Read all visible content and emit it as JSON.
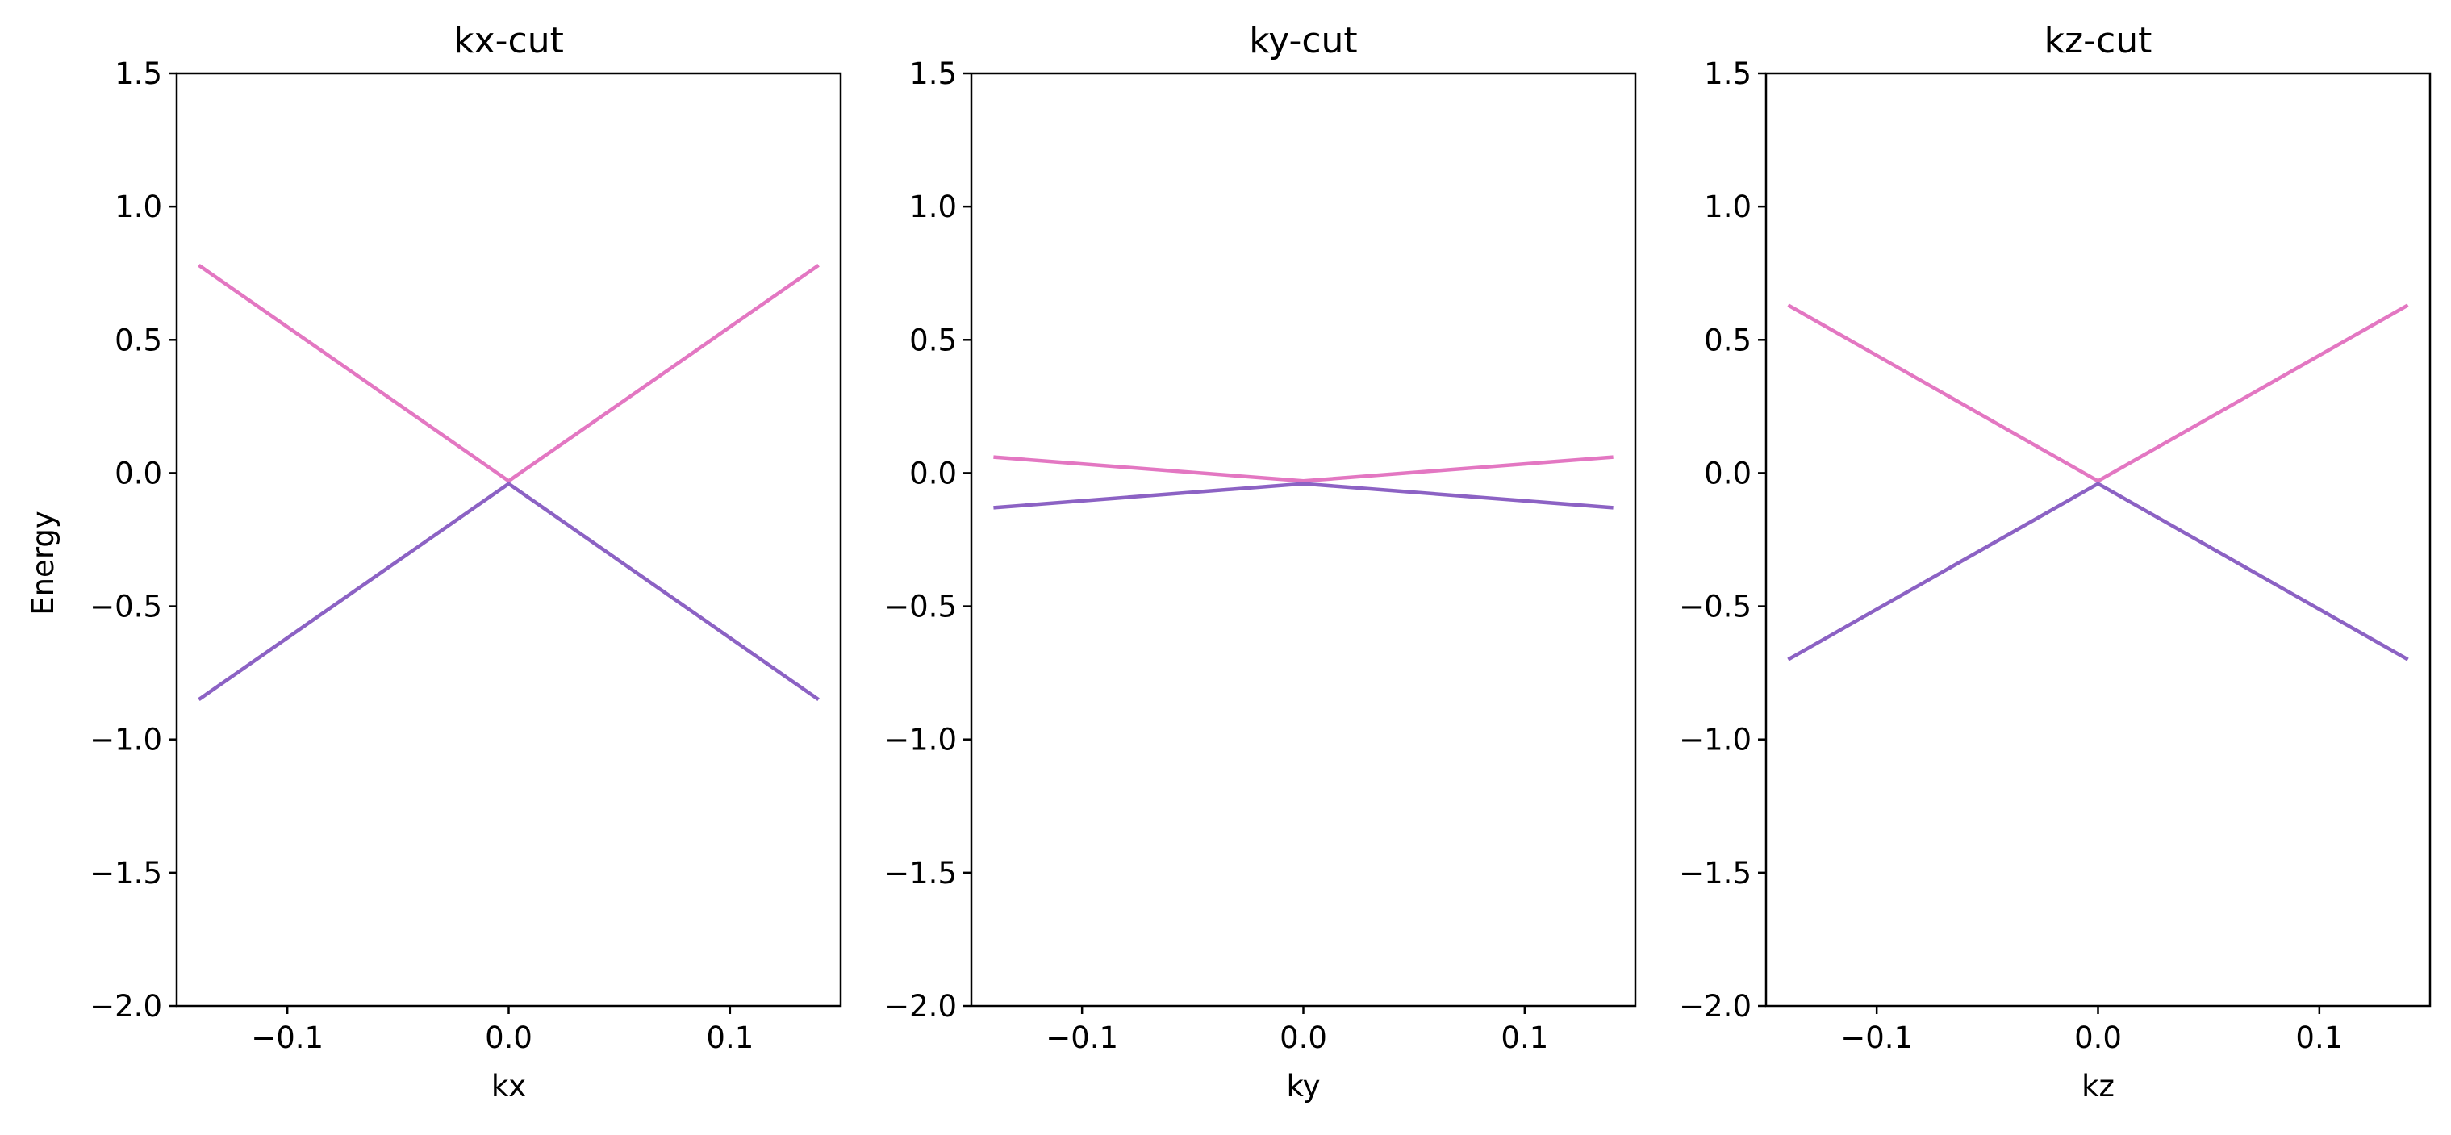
{
  "figure": {
    "background": "#ffffff",
    "shared_ylabel": "Energy"
  },
  "colors": {
    "upper_band": "#e377c2",
    "lower_band": "#8c62c4",
    "axes": "#000000"
  },
  "chart_data": [
    {
      "type": "line",
      "title": "kx-cut",
      "xlabel": "kx",
      "ylabel": "Energy",
      "xlim": [
        -0.15,
        0.15
      ],
      "ylim": [
        -2.0,
        1.5
      ],
      "xticks": [
        -0.1,
        0.0,
        0.1
      ],
      "xtick_labels": [
        "−0.1",
        "0.0",
        "0.1"
      ],
      "yticks": [
        -2.0,
        -1.5,
        -1.0,
        -0.5,
        0.0,
        0.5,
        1.0,
        1.5
      ],
      "ytick_labels": [
        "−2.0",
        "−1.5",
        "−1.0",
        "−0.5",
        "0.0",
        "0.5",
        "1.0",
        "1.5"
      ],
      "grid": false,
      "series": [
        {
          "x": [
            -0.14,
            0.0,
            0.14
          ],
          "y": [
            0.78,
            -0.03,
            0.78
          ],
          "color": "#e377c2"
        },
        {
          "x": [
            -0.14,
            0.0,
            0.14
          ],
          "y": [
            -0.85,
            -0.04,
            -0.85
          ],
          "color": "#8c62c4"
        }
      ]
    },
    {
      "type": "line",
      "title": "ky-cut",
      "xlabel": "ky",
      "ylabel": "",
      "xlim": [
        -0.15,
        0.15
      ],
      "ylim": [
        -2.0,
        1.5
      ],
      "xticks": [
        -0.1,
        0.0,
        0.1
      ],
      "xtick_labels": [
        "−0.1",
        "0.0",
        "0.1"
      ],
      "yticks": [
        -2.0,
        -1.5,
        -1.0,
        -0.5,
        0.0,
        0.5,
        1.0,
        1.5
      ],
      "ytick_labels": [
        "−2.0",
        "−1.5",
        "−1.0",
        "−0.5",
        "0.0",
        "0.5",
        "1.0",
        "1.5"
      ],
      "grid": false,
      "series": [
        {
          "x": [
            -0.14,
            0.0,
            0.14
          ],
          "y": [
            0.06,
            -0.03,
            0.06
          ],
          "color": "#e377c2"
        },
        {
          "x": [
            -0.14,
            0.0,
            0.14
          ],
          "y": [
            -0.13,
            -0.04,
            -0.13
          ],
          "color": "#8c62c4"
        }
      ]
    },
    {
      "type": "line",
      "title": "kz-cut",
      "xlabel": "kz",
      "ylabel": "",
      "xlim": [
        -0.15,
        0.15
      ],
      "ylim": [
        -2.0,
        1.5
      ],
      "xticks": [
        -0.1,
        0.0,
        0.1
      ],
      "xtick_labels": [
        "−0.1",
        "0.0",
        "0.1"
      ],
      "yticks": [
        -2.0,
        -1.5,
        -1.0,
        -0.5,
        0.0,
        0.5,
        1.0,
        1.5
      ],
      "ytick_labels": [
        "−2.0",
        "−1.5",
        "−1.0",
        "−0.5",
        "0.0",
        "0.5",
        "1.0",
        "1.5"
      ],
      "grid": false,
      "series": [
        {
          "x": [
            -0.14,
            0.0,
            0.14
          ],
          "y": [
            0.63,
            -0.03,
            0.63
          ],
          "color": "#e377c2"
        },
        {
          "x": [
            -0.14,
            0.0,
            0.14
          ],
          "y": [
            -0.7,
            -0.04,
            -0.7
          ],
          "color": "#8c62c4"
        }
      ]
    }
  ]
}
